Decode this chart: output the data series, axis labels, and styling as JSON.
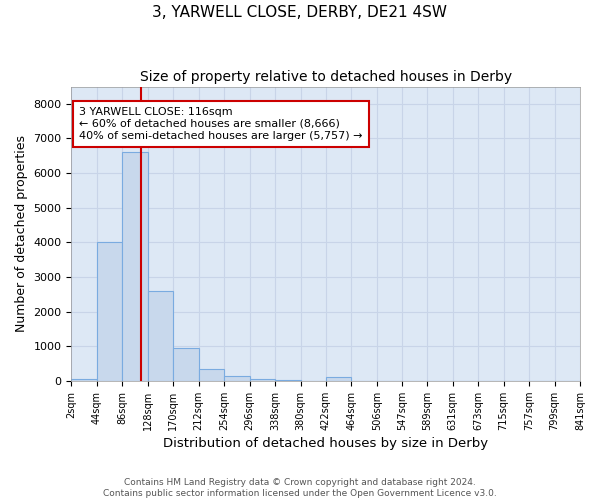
{
  "title": "3, YARWELL CLOSE, DERBY, DE21 4SW",
  "subtitle": "Size of property relative to detached houses in Derby",
  "xlabel": "Distribution of detached houses by size in Derby",
  "ylabel": "Number of detached properties",
  "bar_color": "#c8d8ec",
  "bar_edge_color": "#7aabe0",
  "bg_color": "#dde8f5",
  "fig_bg_color": "#ffffff",
  "grid_color": "#c8d4e8",
  "bin_edges": [
    2,
    44,
    86,
    128,
    170,
    212,
    254,
    296,
    338,
    380,
    422,
    464,
    506,
    547,
    589,
    631,
    673,
    715,
    757,
    799,
    841
  ],
  "bar_heights": [
    50,
    4000,
    6600,
    2600,
    950,
    330,
    130,
    50,
    10,
    5,
    100,
    0,
    0,
    0,
    0,
    0,
    0,
    0,
    0,
    0
  ],
  "red_line_x": 116,
  "annotation_line1": "3 YARWELL CLOSE: 116sqm",
  "annotation_line2": "← 60% of detached houses are smaller (8,666)",
  "annotation_line3": "40% of semi-detached houses are larger (5,757) →",
  "red_line_color": "#cc0000",
  "annot_bg": "#ffffff",
  "annot_edge": "#cc0000",
  "ylim_max": 8500,
  "yticks": [
    0,
    1000,
    2000,
    3000,
    4000,
    5000,
    6000,
    7000,
    8000
  ],
  "footnote_line1": "Contains HM Land Registry data © Crown copyright and database right 2024.",
  "footnote_line2": "Contains public sector information licensed under the Open Government Licence v3.0."
}
